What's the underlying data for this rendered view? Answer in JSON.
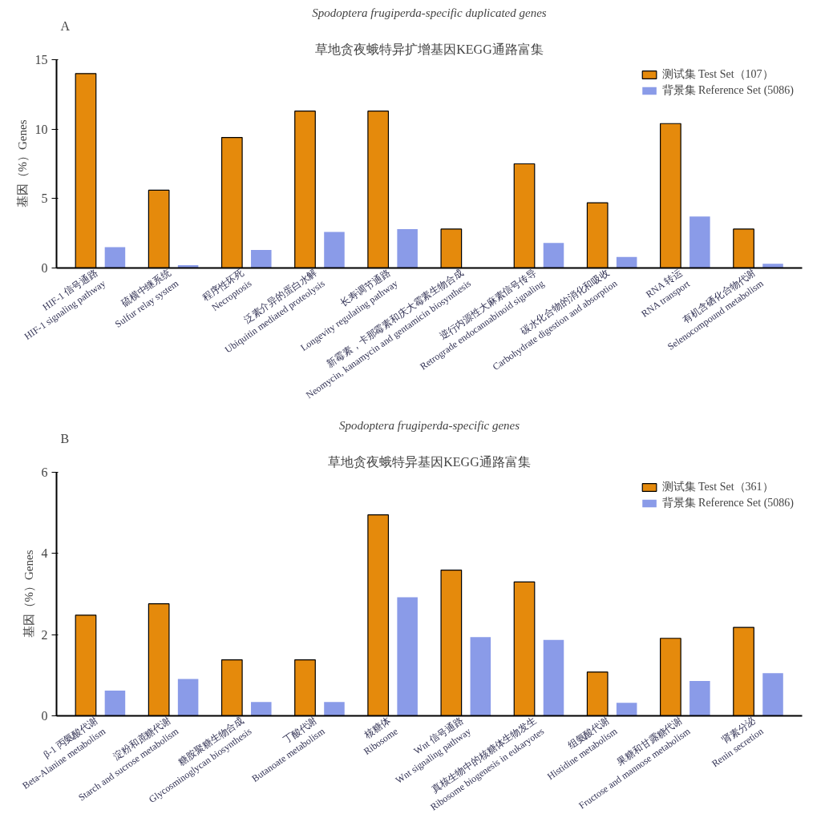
{
  "chart_data": [
    {
      "type": "bar",
      "title": "草地贪夜蛾特异扩增基因KEGG通路富集",
      "subtitle": "Spodoptera frugiperda-specific duplicated genes",
      "ylabel": "基因（%）Genes",
      "annotations": [
        "A"
      ],
      "categories": [
        "HIF-1 信号通路\nHIF-1 signaling pathway",
        "硫横中继系统\nSulfur relay system",
        "程序性坏死\nNecroptosis",
        "泛素介异的蛋白水解\nUbiquitin mediated proteolysis",
        "长寿调节通路\nLongevity regulating pathway",
        "新霉素，卡那霉素和庆大霉素生物合成\nNeomycin, kanamycin and gentamicin biosynthesis",
        "逆行内源性大麻素信号传导\nRetrograde endocannabinoid signaling",
        "碳水化合物的消化和吸收\nCarbohydrate digestion and absorption",
        "RNA 转运\nRNA transport",
        "有机含硒化合物代谢\nSelenocompound metabolism"
      ],
      "series": [
        {
          "name": "测试集 Test Set（107）",
          "color": "#e58a0c",
          "values": [
            14,
            5.6,
            9.4,
            11.3,
            11.3,
            2.8,
            7.5,
            4.7,
            10.4,
            2.8
          ]
        },
        {
          "name": "背景集 Reference Set (5086)",
          "color": "#8a9be8",
          "values": [
            1.5,
            0.2,
            1.3,
            2.6,
            2.8,
            0,
            1.8,
            0.8,
            3.7,
            0.3
          ]
        }
      ],
      "ylim": [
        0,
        15
      ],
      "yticks": [
        0,
        5,
        10,
        15
      ],
      "legend": "top right"
    },
    {
      "type": "bar",
      "title": "草地贪夜蛾特异基因KEGG通路富集",
      "subtitle": "Spodoptera frugiperda-specific genes",
      "ylabel": "基因（%）Genes",
      "annotations": [
        "B"
      ],
      "categories": [
        "β-1 丙氨酸代谢\nBeta-Alanine metabolism",
        "淀粉和蔗糖代谢\nStarch and sucrose metabolism",
        "糖胺聚糖生物合成\nGlycosminoglycan biosynthesis",
        "丁酸代谢\nButanoate metabolism",
        "核糖体\nRibosome",
        "Wnt 信号通路\nWnt signaling pathway",
        "真核生物中的核糖体生物发生\nRibosome biogenesis in eukaryotes",
        "组氨酸代谢\nHistidine metabolism",
        "果糖和甘露糖代谢\nFructose and mannose metabolism",
        "肾素分泌\nRenin secretion"
      ],
      "series": [
        {
          "name": "测试集 Test Set（361）",
          "color": "#e58a0c",
          "values": [
            2.48,
            2.76,
            1.38,
            1.38,
            4.95,
            3.59,
            3.3,
            1.08,
            1.91,
            2.18
          ]
        },
        {
          "name": "背景集 Reference Set (5086)",
          "color": "#8a9be8",
          "values": [
            0.62,
            0.91,
            0.34,
            0.34,
            2.92,
            1.94,
            1.87,
            0.32,
            0.86,
            1.05
          ]
        }
      ],
      "ylim": [
        0,
        6
      ],
      "yticks": [
        0,
        2,
        4,
        6
      ],
      "legend": "top right"
    }
  ]
}
